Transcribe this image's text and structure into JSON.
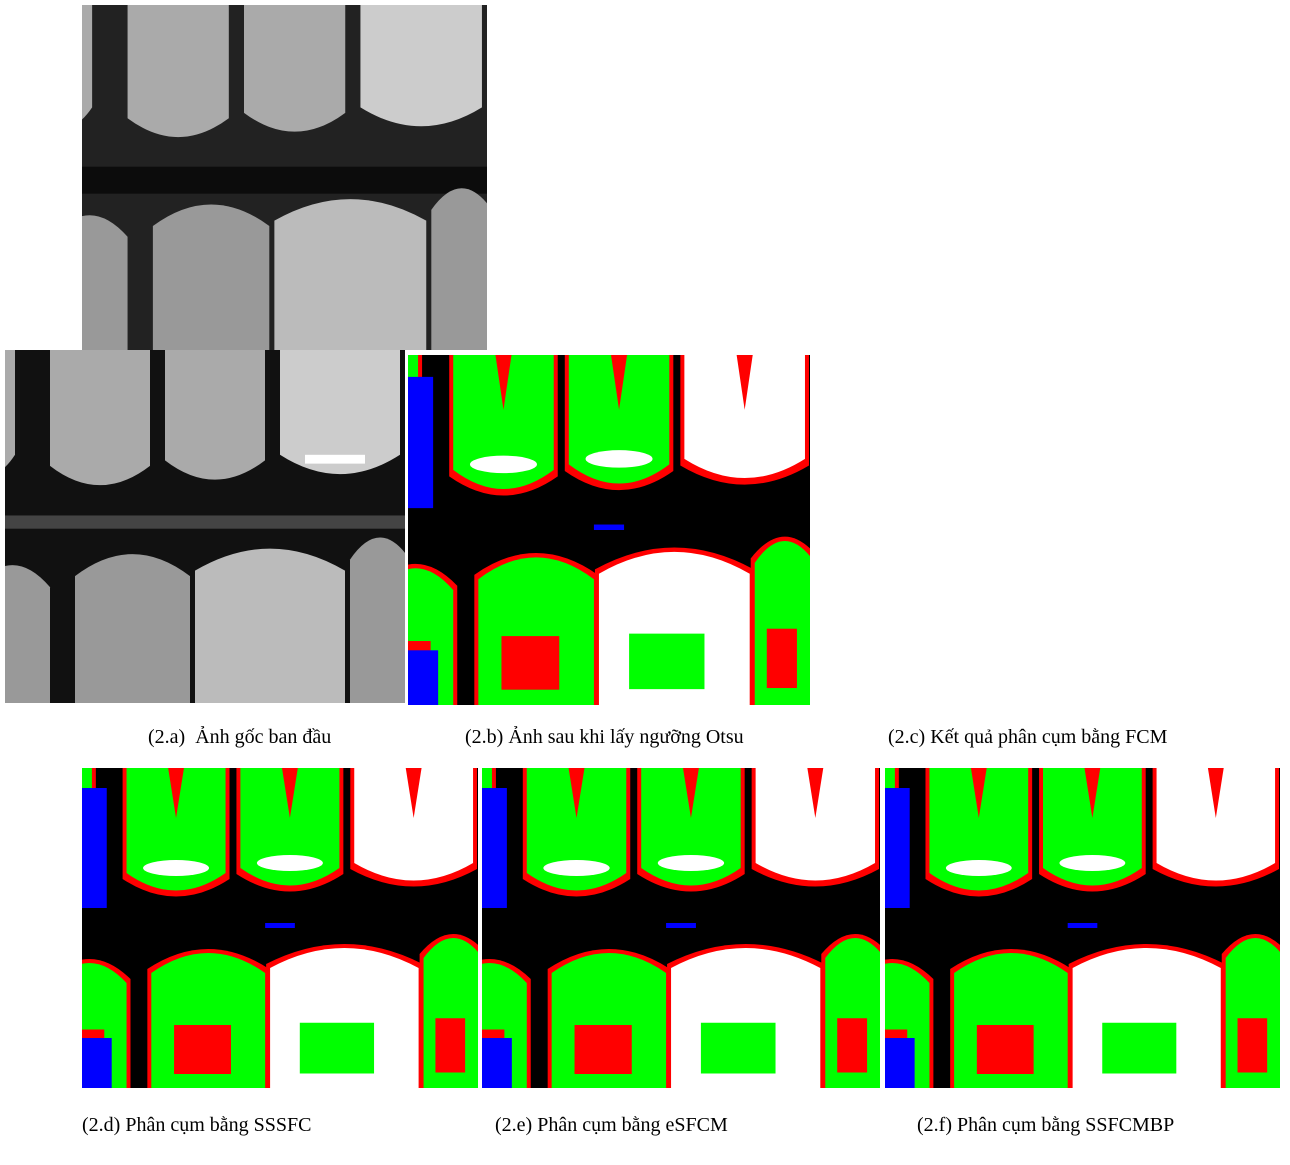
{
  "figure": {
    "captions": [
      "(2.a)  Ảnh gốc ban đầu",
      "(2.b) Ảnh sau khi lấy ngưỡng Otsu",
      "(2.c) Kết quả phân cụm bằng FCM",
      "(2.d) Phân cụm bằng SSSFC",
      "(2.e) Phân cụm bằng eSFCM",
      "(2.f) Phân cụm bằng SSFCMBP"
    ]
  }
}
